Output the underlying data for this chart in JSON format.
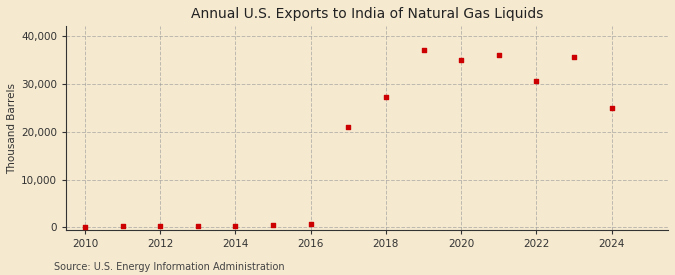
{
  "title": "Annual U.S. Exports to India of Natural Gas Liquids",
  "ylabel": "Thousand Barrels",
  "source": "Source: U.S. Energy Information Administration",
  "background_color": "#f5e9d0",
  "plot_background_color": "#f5e9d0",
  "marker_color": "#cc0000",
  "marker": "s",
  "marker_size": 3.5,
  "years": [
    2010,
    2011,
    2012,
    2013,
    2014,
    2015,
    2016,
    2017,
    2018,
    2019,
    2020,
    2021,
    2022,
    2023,
    2024
  ],
  "values": [
    0,
    200,
    200,
    300,
    200,
    400,
    700,
    21000,
    27200,
    37000,
    35000,
    36000,
    30500,
    35500,
    25000
  ],
  "xlim": [
    2009.5,
    2025.5
  ],
  "ylim": [
    -500,
    42000
  ],
  "yticks": [
    0,
    10000,
    20000,
    30000,
    40000
  ],
  "xticks": [
    2010,
    2012,
    2014,
    2016,
    2018,
    2020,
    2022,
    2024
  ],
  "grid_color": "#999999",
  "grid_style": "--",
  "grid_alpha": 0.6,
  "title_fontsize": 10,
  "axis_fontsize": 7.5,
  "source_fontsize": 7
}
